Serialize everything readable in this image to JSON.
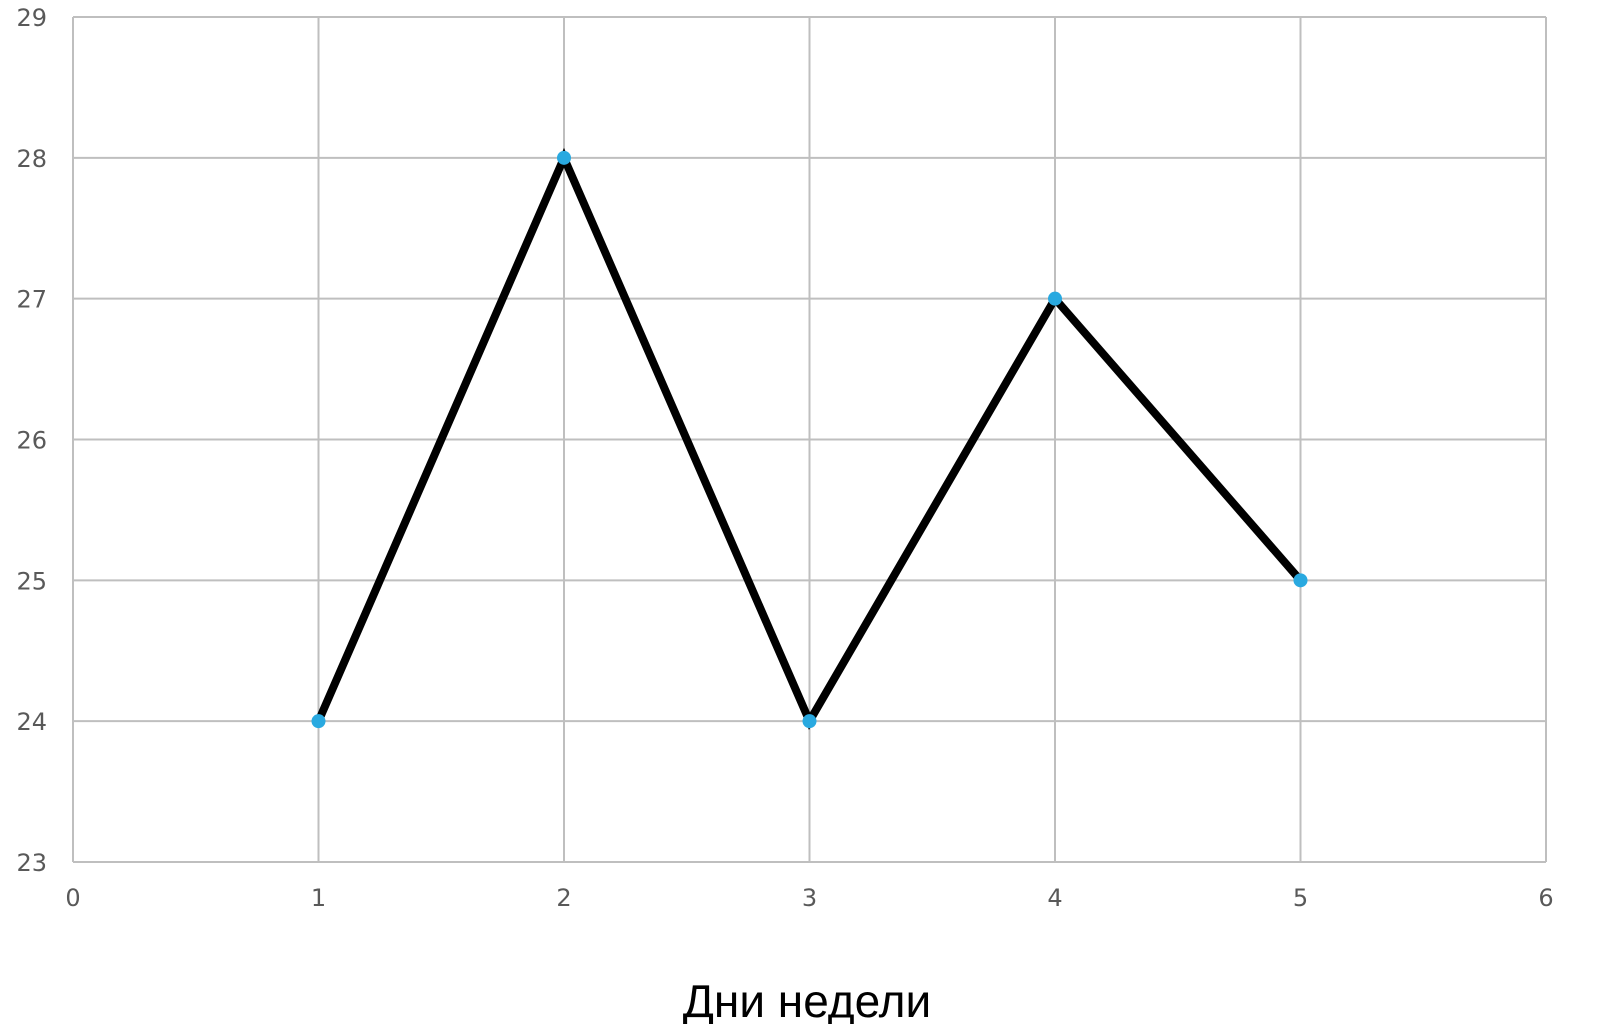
{
  "chart_data": {
    "type": "line",
    "title": "",
    "xlabel": "Дни недели",
    "ylabel": "",
    "xlim": [
      0,
      6
    ],
    "ylim": [
      23,
      29
    ],
    "xticks": [
      0,
      1,
      2,
      3,
      4,
      5,
      6
    ],
    "yticks": [
      23,
      24,
      25,
      26,
      27,
      28,
      29
    ],
    "grid": true,
    "legend": "none",
    "series": [
      {
        "x": [
          1,
          2,
          3,
          4,
          5
        ],
        "y": [
          24,
          28,
          24,
          27,
          25
        ],
        "line_color": "#000000",
        "marker_color": "#29a9e0"
      }
    ]
  }
}
